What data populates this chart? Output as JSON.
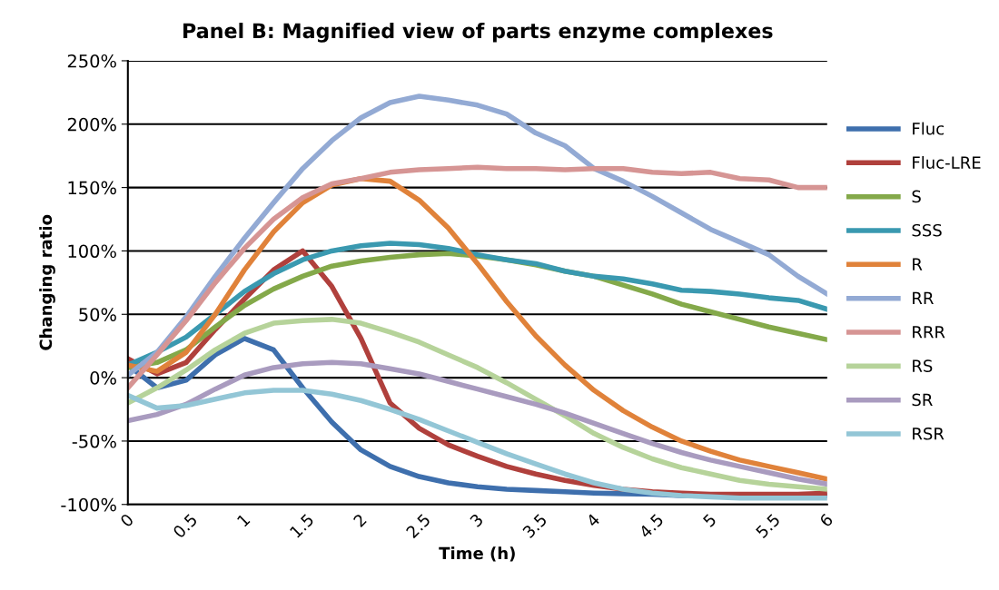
{
  "chart_data": {
    "type": "line",
    "title": "Panel B: Magnified view of parts enzyme complexes",
    "xlabel": "Time (h)",
    "ylabel": "Changing ratio",
    "x": [
      0,
      0.25,
      0.5,
      0.75,
      1,
      1.25,
      1.5,
      1.75,
      2,
      2.25,
      2.5,
      2.75,
      3,
      3.25,
      3.5,
      3.75,
      4,
      4.25,
      4.5,
      4.75,
      5,
      5.25,
      5.5,
      5.75,
      6
    ],
    "series": [
      {
        "name": "Fluc",
        "color": "#3e6fad",
        "values": [
          10,
          -8,
          -2,
          18,
          31,
          22,
          -8,
          -35,
          -57,
          -70,
          -78,
          -83,
          -86,
          -88,
          -89,
          -90,
          -91,
          -91.5,
          -92,
          -93,
          -93,
          -93,
          -93,
          -93,
          -93
        ]
      },
      {
        "name": "Fluc-LRE",
        "color": "#b0403c",
        "values": [
          15,
          3,
          12,
          38,
          62,
          85,
          100,
          72,
          31,
          -20,
          -40,
          -53,
          -62,
          -70,
          -76,
          -81,
          -85,
          -88,
          -90,
          -91,
          -92,
          -92,
          -92,
          -92,
          -91
        ]
      },
      {
        "name": "S",
        "color": "#84a94a",
        "values": [
          8,
          12,
          22,
          40,
          57,
          70,
          80,
          88,
          92,
          95,
          97,
          98,
          96,
          93,
          89,
          84,
          80,
          73,
          66,
          58,
          52,
          46,
          40,
          35,
          30
        ]
      },
      {
        "name": "SSS",
        "color": "#3a99b0",
        "values": [
          10,
          20,
          32,
          50,
          68,
          82,
          93,
          100,
          104,
          106,
          105,
          102,
          97,
          93,
          90,
          84,
          80,
          78,
          74,
          69,
          68,
          66,
          63,
          61,
          54
        ]
      },
      {
        "name": "R",
        "color": "#e0823a",
        "values": [
          10,
          5,
          20,
          50,
          85,
          115,
          138,
          152,
          157,
          155,
          140,
          118,
          90,
          60,
          33,
          10,
          -10,
          -26,
          -39,
          -50,
          -58,
          -65,
          -70,
          -75,
          -80
        ]
      },
      {
        "name": "RR",
        "color": "#93aad4",
        "values": [
          2,
          20,
          48,
          80,
          110,
          138,
          165,
          187,
          205,
          217,
          222,
          219,
          215,
          208,
          193,
          183,
          165,
          155,
          143,
          130,
          117,
          107,
          97,
          80,
          66
        ]
      },
      {
        "name": "RRR",
        "color": "#d69594",
        "values": [
          -8,
          18,
          45,
          75,
          102,
          125,
          142,
          153,
          157,
          162,
          164,
          165,
          166,
          165,
          165,
          164,
          165,
          165,
          162,
          161,
          162,
          157,
          156,
          150,
          150
        ]
      },
      {
        "name": "RS",
        "color": "#b6d39a",
        "values": [
          -20,
          -8,
          6,
          22,
          35,
          43,
          45,
          46,
          43,
          36,
          28,
          18,
          8,
          -4,
          -17,
          -30,
          -44,
          -55,
          -64,
          -71,
          -76,
          -81,
          -84,
          -86,
          -88
        ]
      },
      {
        "name": "SR",
        "color": "#a99bbf",
        "values": [
          -34,
          -29,
          -21,
          -9,
          2,
          8,
          11,
          12,
          11,
          7,
          3,
          -3,
          -9,
          -15,
          -21,
          -28,
          -36,
          -44,
          -52,
          -59,
          -65,
          -70,
          -75,
          -80,
          -84
        ]
      },
      {
        "name": "RSR",
        "color": "#93c6d6",
        "values": [
          -14,
          -24,
          -22,
          -17,
          -12,
          -10,
          -10,
          -13,
          -18,
          -25,
          -33,
          -42,
          -51,
          -60,
          -68,
          -76,
          -83,
          -88,
          -91,
          -93,
          -94,
          -95,
          -95,
          -95,
          -95
        ]
      }
    ],
    "xlim": [
      0,
      6
    ],
    "xticks": [
      0,
      0.5,
      1,
      1.5,
      2,
      2.5,
      3,
      3.5,
      4,
      4.5,
      5,
      5.5,
      6
    ],
    "ylim": [
      -100,
      250
    ],
    "yticks": [
      {
        "value": -100,
        "label": "-100%"
      },
      {
        "value": -50,
        "label": "-50%"
      },
      {
        "value": 0,
        "label": "0%"
      },
      {
        "value": 50,
        "label": "50%"
      },
      {
        "value": 100,
        "label": "100%"
      },
      {
        "value": 150,
        "label": "150%"
      },
      {
        "value": 200,
        "label": "200%"
      },
      {
        "value": 250,
        "label": "250%"
      }
    ],
    "grid": "y",
    "legend": "right",
    "marker": "none",
    "line_style": "solid"
  }
}
